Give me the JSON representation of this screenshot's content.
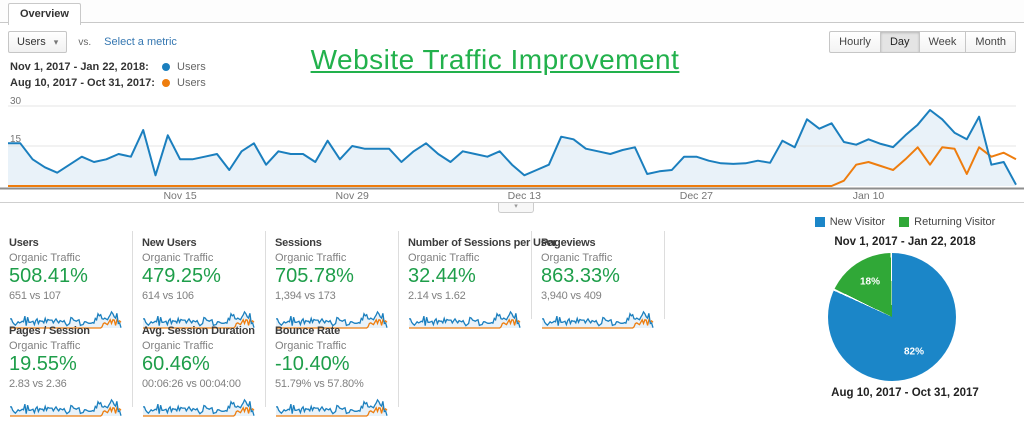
{
  "window": {
    "tab": "Overview"
  },
  "controls": {
    "metric_select": "Users",
    "vs_label": "vs.",
    "select_metric_label": "Select a metric",
    "granularity": [
      "Hourly",
      "Day",
      "Week",
      "Month"
    ],
    "granularity_active": "Day"
  },
  "title": {
    "text": "Website Traffic Improvement"
  },
  "legend": {
    "rows": [
      {
        "range": "Nov 1, 2017 - Jan 22, 2018:",
        "series": "Users",
        "color": "#1b7fbe"
      },
      {
        "range": "Aug 10, 2017 - Oct 31, 2017:",
        "series": "Users",
        "color": "#ee7d0e"
      }
    ]
  },
  "chart_data": [
    {
      "type": "line",
      "title": "Users by day, current period vs previous period",
      "ylim": [
        0,
        30
      ],
      "y_ticks": [
        15,
        30
      ],
      "x_ticks": [
        {
          "label": "Nov 15",
          "day": 14
        },
        {
          "label": "Nov 29",
          "day": 28
        },
        {
          "label": "Dec 13",
          "day": 42
        },
        {
          "label": "Dec 27",
          "day": 56
        },
        {
          "label": "Jan 10",
          "day": 70
        }
      ],
      "grid": true,
      "legend_position": "top-left",
      "series": [
        {
          "name": "Users (Nov 1, 2017 - Jan 22, 2018)",
          "color": "#1b7fbe",
          "values": [
            16,
            16,
            10,
            7,
            5,
            8,
            11,
            9,
            10,
            12,
            11,
            21,
            4,
            19,
            10,
            10,
            11,
            12,
            6,
            13,
            16,
            8,
            13,
            12,
            12,
            9,
            17,
            10,
            15,
            14,
            14,
            14,
            9,
            13,
            16,
            12,
            9,
            13,
            12,
            11,
            13,
            8,
            4,
            6,
            8,
            18.5,
            17.5,
            14,
            13,
            12,
            13.5,
            14.5,
            4.5,
            5.5,
            6,
            11,
            11,
            9.5,
            8.5,
            8.3,
            8.5,
            9.5,
            8.7,
            17,
            14.5,
            25,
            21.5,
            23.5,
            16.5,
            15.5,
            17.5,
            15.8,
            14.6,
            19,
            23,
            28.5,
            25,
            20,
            17.5,
            26,
            8,
            9,
            0.5
          ]
        },
        {
          "name": "Users (Aug 10, 2017 - Oct 31, 2017)",
          "color": "#ee7d0e",
          "values": [
            0,
            0,
            0,
            0,
            0,
            0,
            0,
            0,
            0,
            0,
            0,
            0,
            0,
            0,
            0,
            0,
            0,
            0,
            0,
            0,
            0,
            0,
            0,
            0,
            0,
            0,
            0,
            0,
            0,
            0,
            0,
            0,
            0,
            0,
            0,
            0,
            0,
            0,
            0,
            0,
            0,
            0,
            0,
            0,
            0,
            0,
            0,
            0,
            0,
            0,
            0,
            0,
            0,
            0,
            0,
            0,
            0,
            0,
            0,
            0,
            0,
            0,
            0,
            0,
            0,
            0,
            0,
            0,
            2,
            8,
            9,
            7.5,
            6,
            10,
            14.5,
            8,
            14.5,
            14,
            4.5,
            14.5,
            11,
            12.5,
            10
          ]
        }
      ]
    },
    {
      "type": "pie",
      "title": "Nov 1, 2017 - Jan 22, 2018",
      "labels": [
        "New Visitor",
        "Returning Visitor"
      ],
      "values": [
        82,
        18
      ],
      "unit": "%",
      "colors": [
        "#1b86c8",
        "#30a837"
      ],
      "legend_position": "top"
    }
  ],
  "scorecards": {
    "rows": [
      [
        {
          "title": "Users",
          "subtitle": "Organic Traffic",
          "change": "508.41%",
          "comparison": "651 vs 107"
        },
        {
          "title": "New Users",
          "subtitle": "Organic Traffic",
          "change": "479.25%",
          "comparison": "614 vs 106"
        },
        {
          "title": "Sessions",
          "subtitle": "Organic Traffic",
          "change": "705.78%",
          "comparison": "1,394 vs 173"
        },
        {
          "title": "Number of Sessions per User",
          "subtitle": "Organic Traffic",
          "change": "32.44%",
          "comparison": "2.14 vs 1.62"
        },
        {
          "title": "Pageviews",
          "subtitle": "Organic Traffic",
          "change": "863.33%",
          "comparison": "3,940 vs 409"
        }
      ],
      [
        {
          "title": "Pages / Session",
          "subtitle": "Organic Traffic",
          "change": "19.55%",
          "comparison": "2.83 vs 2.36"
        },
        {
          "title": "Avg. Session Duration",
          "subtitle": "Organic Traffic",
          "change": "60.46%",
          "comparison": "00:06:26 vs 00:04:00"
        },
        {
          "title": "Bounce Rate",
          "subtitle": "Organic Traffic",
          "change": "-10.40%",
          "comparison": "51.79% vs 57.80%"
        }
      ]
    ]
  },
  "pie_section": {
    "legend": [
      "New Visitor",
      "Returning Visitor"
    ],
    "title": "Nov 1, 2017 - Jan 22, 2018",
    "bottom_title": "Aug 10, 2017 - Oct 31, 2017",
    "slice_labels": [
      "82%",
      "18%"
    ]
  },
  "colors": {
    "chart_blue": "#1b7fbe",
    "chart_orange": "#ee7d0e",
    "fill_blue": "#e9f2f9",
    "positive_green": "#1e9e4a",
    "title_green": "#22b14c",
    "link_blue": "#3577b1",
    "pie_blue": "#1b86c8",
    "pie_green": "#30a837"
  }
}
